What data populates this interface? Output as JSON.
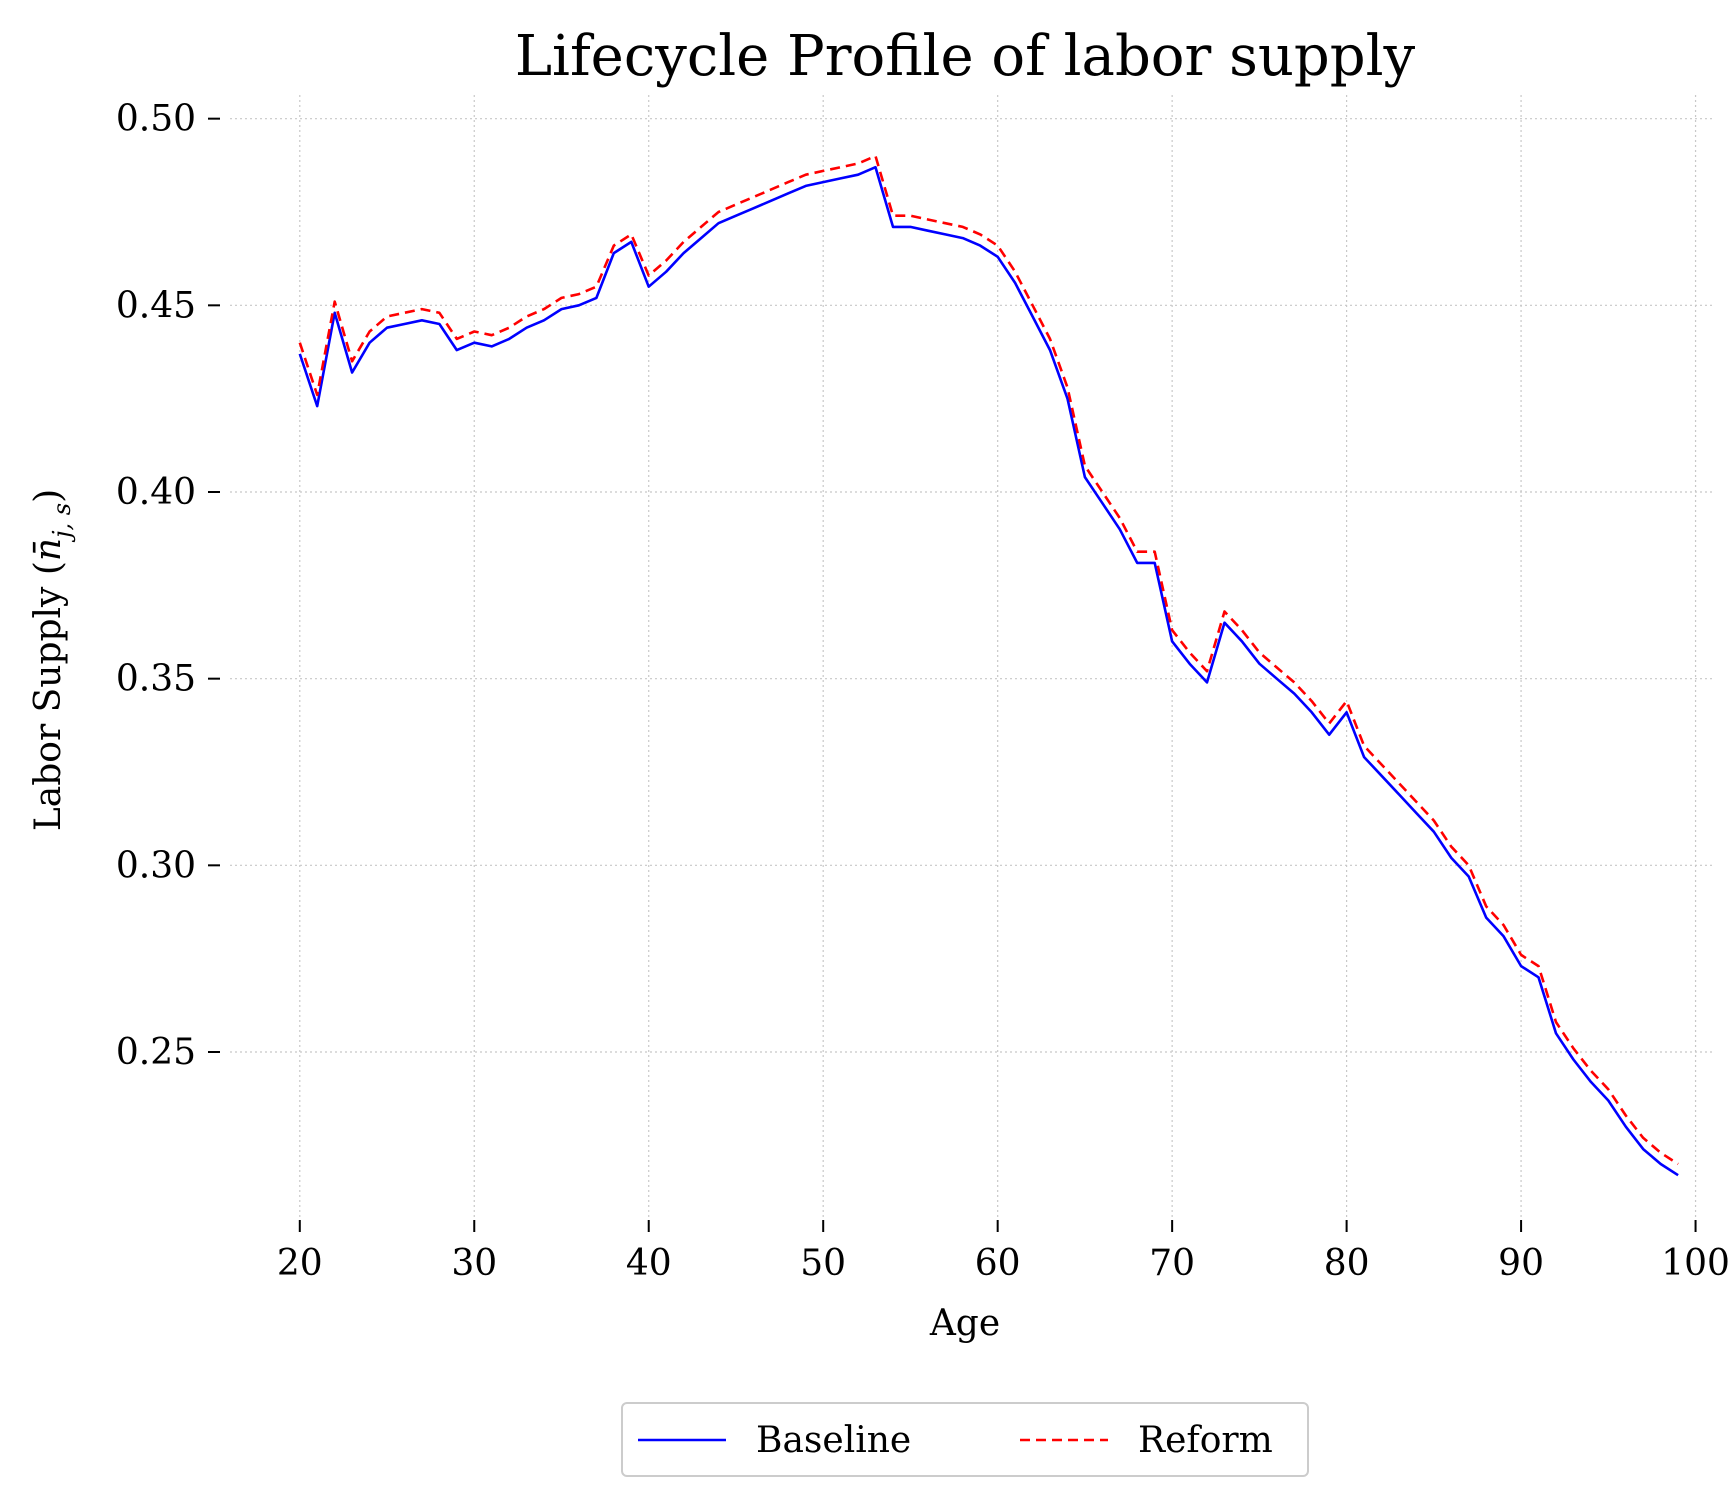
{
  "chart_data": {
    "type": "line",
    "title": "Lifecycle Profile of labor supply",
    "xlabel": "Age",
    "ylabel_text": "Labor Supply (",
    "ylabel_symbol": "n̄",
    "ylabel_sub": "j, s",
    "ylabel_close": ")",
    "xlim": [
      16,
      101
    ],
    "ylim": [
      0.205,
      0.505
    ],
    "xticks": [
      20,
      30,
      40,
      50,
      60,
      70,
      80,
      90,
      100
    ],
    "yticks": [
      0.25,
      0.3,
      0.35,
      0.4,
      0.45,
      0.5
    ],
    "grid": true,
    "legend_placement": "bottom-center",
    "x": [
      20,
      21,
      22,
      23,
      24,
      25,
      26,
      27,
      28,
      29,
      30,
      31,
      32,
      33,
      34,
      35,
      36,
      37,
      38,
      39,
      40,
      41,
      42,
      43,
      44,
      45,
      46,
      47,
      48,
      49,
      50,
      51,
      52,
      53,
      54,
      55,
      56,
      57,
      58,
      59,
      60,
      61,
      62,
      63,
      64,
      65,
      66,
      67,
      68,
      69,
      70,
      71,
      72,
      73,
      74,
      75,
      76,
      77,
      78,
      79,
      80,
      81,
      82,
      83,
      84,
      85,
      86,
      87,
      88,
      89,
      90,
      91,
      92,
      93,
      94,
      95,
      96,
      97,
      98,
      99
    ],
    "series": [
      {
        "name": "Baseline",
        "color": "#0000ff",
        "style": "solid",
        "values": [
          0.437,
          0.423,
          0.448,
          0.432,
          0.44,
          0.444,
          0.445,
          0.446,
          0.445,
          0.438,
          0.44,
          0.439,
          0.441,
          0.444,
          0.446,
          0.449,
          0.45,
          0.452,
          0.464,
          0.467,
          0.455,
          0.459,
          0.464,
          0.468,
          0.472,
          0.474,
          0.476,
          0.478,
          0.48,
          0.482,
          0.483,
          0.484,
          0.485,
          0.487,
          0.471,
          0.471,
          0.47,
          0.469,
          0.468,
          0.466,
          0.463,
          0.456,
          0.447,
          0.438,
          0.425,
          0.404,
          0.397,
          0.39,
          0.381,
          0.381,
          0.36,
          0.354,
          0.349,
          0.365,
          0.36,
          0.354,
          0.35,
          0.346,
          0.341,
          0.335,
          0.341,
          0.329,
          0.324,
          0.319,
          0.314,
          0.309,
          0.302,
          0.297,
          0.286,
          0.281,
          0.273,
          0.27,
          0.255,
          0.248,
          0.242,
          0.237,
          0.23,
          0.224,
          0.22,
          0.217
        ]
      },
      {
        "name": "Reform",
        "color": "#ff0000",
        "style": "dashed",
        "values": [
          0.44,
          0.426,
          0.451,
          0.435,
          0.443,
          0.447,
          0.448,
          0.449,
          0.448,
          0.441,
          0.443,
          0.442,
          0.444,
          0.447,
          0.449,
          0.452,
          0.453,
          0.455,
          0.466,
          0.469,
          0.458,
          0.462,
          0.467,
          0.471,
          0.475,
          0.477,
          0.479,
          0.481,
          0.483,
          0.485,
          0.486,
          0.487,
          0.488,
          0.49,
          0.474,
          0.474,
          0.473,
          0.472,
          0.471,
          0.469,
          0.466,
          0.459,
          0.45,
          0.441,
          0.428,
          0.407,
          0.4,
          0.393,
          0.384,
          0.384,
          0.363,
          0.357,
          0.352,
          0.368,
          0.363,
          0.357,
          0.353,
          0.349,
          0.344,
          0.338,
          0.344,
          0.332,
          0.327,
          0.322,
          0.317,
          0.312,
          0.305,
          0.3,
          0.289,
          0.284,
          0.276,
          0.273,
          0.258,
          0.251,
          0.245,
          0.24,
          0.233,
          0.227,
          0.223,
          0.22
        ]
      }
    ]
  }
}
